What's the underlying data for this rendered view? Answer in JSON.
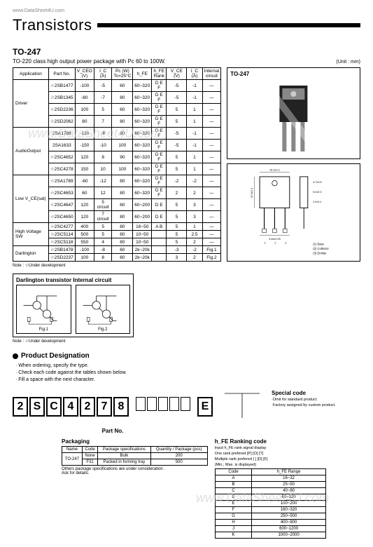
{
  "url": "www.DataSheet4U.com",
  "watermark": "www.DataSheet4U.com",
  "title": "Transistors",
  "subhead": "TO-247",
  "desc": "TO-220 class high output power package with Pc 60 to 100W.",
  "unit": "(Unit : mm)",
  "main_table": {
    "headers": [
      "Application",
      "Part No.",
      "V_CEO\n(V)",
      "I_C\n(A)",
      "Pc (W)\nTc=25°C",
      "h_FE",
      "h_FE\nRank",
      "V_CE (V)",
      "I_C (A)",
      "Internal\ncircuit"
    ],
    "groups": [
      {
        "app": "Driver",
        "rows": [
          [
            "☆2SB1477",
            "-100",
            "-5",
            "60",
            "60~320",
            "D E F",
            "-5",
            "-1",
            "—"
          ],
          [
            "☆2SB1345",
            "-80",
            "-7",
            "80",
            "60~320",
            "D E F",
            "-5",
            "-1",
            "—"
          ],
          [
            "☆2SD2236",
            "100",
            "5",
            "60",
            "60~320",
            "D E F",
            "5",
            "1",
            "—"
          ],
          [
            "☆2SD2062",
            "80",
            "7",
            "80",
            "60~320",
            "D E F",
            "5",
            "1",
            "—"
          ]
        ]
      },
      {
        "app": "AudioOutput",
        "rows": [
          [
            "2SA1788",
            "-120",
            "-8",
            "90",
            "60~320",
            "D E F",
            "-5",
            "-1",
            "—"
          ],
          [
            "2SA1633",
            "-150",
            "-10",
            "100",
            "60~320",
            "D E F",
            "-5",
            "-1",
            "—"
          ],
          [
            "☆2SC4652",
            "120",
            "8",
            "90",
            "60~320",
            "D E F",
            "5",
            "1",
            "—"
          ],
          [
            "☆2SC4278",
            "150",
            "10",
            "100",
            "60~320",
            "D E F",
            "5",
            "1",
            "—"
          ]
        ]
      },
      {
        "app": "Low V_CE(sat)",
        "rows": [
          [
            "☆2SA1789",
            "-60",
            "-12",
            "80",
            "60~320",
            "D E F",
            "-2",
            "-2",
            "—"
          ],
          [
            "☆2SC4653",
            "60",
            "12",
            "80",
            "60~320",
            "D E F",
            "2",
            "2",
            "—"
          ],
          [
            "☆2SC4647",
            "120",
            "5 circuit",
            "60",
            "60~200",
            "D E",
            "5",
            "3",
            "—"
          ],
          [
            "☆2SC4650",
            "120",
            "7 circuit",
            "80",
            "60~200",
            "D E",
            "5",
            "3",
            "—"
          ]
        ]
      },
      {
        "app": "High Voltage SW",
        "rows": [
          [
            "☆2SC4277",
            "400",
            "5",
            "80",
            "16~50",
            "A B",
            "5",
            "1",
            "—"
          ],
          [
            "☆2SC5114",
            "500",
            "5",
            "80",
            "10~50",
            " ",
            "5",
            "2.5",
            "—"
          ],
          [
            "☆2SC5118",
            "550",
            "4",
            "80",
            "10~50",
            " ",
            "5",
            "2",
            "—"
          ]
        ]
      },
      {
        "app": "Darlington",
        "rows": [
          [
            "☆2SB1478",
            "-100",
            "-8",
            "60",
            "2k~20k",
            " ",
            "-3",
            "-2",
            "Fig.1"
          ],
          [
            "☆2SD2237",
            "100",
            "8",
            "60",
            "2k~20k",
            " ",
            "3",
            "2",
            "Fig.2"
          ]
        ]
      }
    ]
  },
  "note1": "Note : ☆Under development",
  "note2": "Note : ☆Under development",
  "darlington_title": "Darlington transistor Internal circuit",
  "fig1_label": "Fig.1",
  "fig2_label": "Fig.2",
  "pkg_label": "TO-247",
  "pin_labels": {
    "1": "(1) Base",
    "2": "(2) Collector",
    "3": "(3) Emitter"
  },
  "dims": {
    "w": "15.3±0.2",
    "h": "20.3±0.3",
    "hole": "2.8±0.2",
    "lead_pitch": "5.46±0.25",
    "lead_w": "1.2±0.2",
    "total_h": "40.5",
    "top_pad": "4.7±0.5",
    "thick1": "5.0±0.3",
    "thick2": "2.4±0.1",
    "tab_h": "5.5±0.5"
  },
  "pd_title": "Product Designation",
  "pd_items": [
    "When ordering, specify the type.",
    "Check each code against the tables shown below.",
    "Fill a space with the next character."
  ],
  "chars": [
    "2",
    "S",
    "C",
    "4",
    "2",
    "7",
    "8"
  ],
  "blank_count": 5,
  "suffix_char": "E",
  "partno_label": "Part No.",
  "special_title": "Special code",
  "special_sub1": "·Omit for standard product.",
  "special_sub2": "·Factory assigned by custom product.",
  "packaging_title": "Packaging",
  "packaging_table": {
    "headers": [
      "Name",
      "Code",
      "Package specifications",
      "Quantity / Package (pcs)"
    ],
    "rows": [
      [
        "TO-247",
        "None",
        "Bulk",
        "200"
      ],
      [
        "",
        "F31",
        "Packed in forming tray",
        "500"
      ]
    ],
    "note": "Others package specifications are under consideration .\nAsk for details."
  },
  "hfe_title": "h_FE Ranking code",
  "hfe_sub1": "Input h_FE rank signal display",
  "hfe_sub2": "One rank prefered  [P] [O] [T]",
  "hfe_sub3": "Multiple rank prefered  [ ] [D] [F]",
  "hfe_sub4": "(Min., Max. is displayed)",
  "hfe_table": {
    "headers": [
      "Code",
      "h_FE Range"
    ],
    "rows": [
      [
        "A",
        "16~32"
      ],
      [
        "B",
        "25~50"
      ],
      [
        "C",
        "40~80"
      ],
      [
        "D",
        "60~120"
      ],
      [
        "E",
        "100~200"
      ],
      [
        "F",
        "160~320"
      ],
      [
        "G",
        "250~500"
      ],
      [
        "H",
        "400~800"
      ],
      [
        "J",
        "600~1200"
      ],
      [
        "K",
        "1000~2000"
      ]
    ]
  }
}
